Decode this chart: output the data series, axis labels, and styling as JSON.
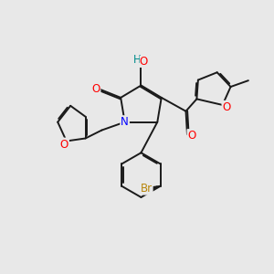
{
  "bg_color": "#e8e8e8",
  "bond_color": "#1a1a1a",
  "bond_width": 1.4,
  "atom_colors": {
    "O": "#ff0000",
    "N": "#0000ff",
    "Br": "#b8860b",
    "H": "#008b8b",
    "C": "#1a1a1a"
  },
  "font_size": 8.5,
  "xlim": [
    0,
    10
  ],
  "ylim": [
    0,
    10
  ]
}
